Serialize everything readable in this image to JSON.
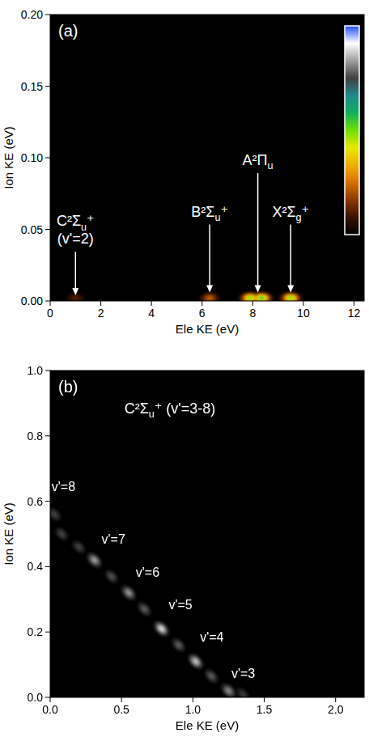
{
  "chart_data": [
    {
      "type": "heatmap",
      "title": "(a)",
      "xlabel": "Ele KE (eV)",
      "ylabel": "Ion KE (eV)",
      "xlim": [
        0,
        12.4
      ],
      "xticks": [
        0,
        2,
        4,
        6,
        8,
        10,
        12
      ],
      "ylim": [
        0,
        0.2
      ],
      "yticks": [
        {
          "value": 0,
          "label": "0.00"
        },
        {
          "value": 0.05,
          "label": "0.05"
        },
        {
          "value": 0.1,
          "label": "0.10"
        },
        {
          "value": 0.15,
          "label": "0.15"
        },
        {
          "value": 0.2,
          "label": "0.20"
        }
      ],
      "spots": [
        {
          "x": 1.0,
          "y": 0.002,
          "value": 0.12
        },
        {
          "x": 6.3,
          "y": 0.002,
          "value": 0.25
        },
        {
          "x": 7.9,
          "y": 0.002,
          "value": 0.55
        },
        {
          "x": 8.35,
          "y": 0.002,
          "value": 0.6
        },
        {
          "x": 9.5,
          "y": 0.002,
          "value": 0.55
        }
      ],
      "annotations": [
        {
          "text": [
            "C²Σu⁺",
            "(v'=2)"
          ],
          "x": 1.0,
          "y": 0.004,
          "text_y": 0.04,
          "arrow": true
        },
        {
          "text": [
            "B²Σu⁺"
          ],
          "x": 6.3,
          "y": 0.006,
          "text_y": 0.059,
          "arrow": true
        },
        {
          "text": [
            "A²Πu"
          ],
          "x": 8.2,
          "y": 0.006,
          "text_y": 0.095,
          "arrow": true
        },
        {
          "text": [
            "X²Σg⁺"
          ],
          "x": 9.5,
          "y": 0.006,
          "text_y": 0.059,
          "arrow": true
        }
      ],
      "colorbar": {
        "colors": [
          "#000000",
          "#3a1200",
          "#8a3a00",
          "#d87000",
          "#f0b000",
          "#e8e800",
          "#70e000",
          "#10b060",
          "#208890",
          "#404040",
          "#a0a0a0",
          "#ffffff",
          "#2050ff"
        ]
      }
    },
    {
      "type": "heatmap",
      "title": "(b)",
      "xlabel": "Ele KE (eV)",
      "ylabel": "Ion KE (eV)",
      "xlim": [
        0,
        2.2
      ],
      "xticks": [
        {
          "value": 0,
          "label": "0.0"
        },
        {
          "value": 0.5,
          "label": "0.5"
        },
        {
          "value": 1,
          "label": "1.0"
        },
        {
          "value": 1.5,
          "label": "1.5"
        },
        {
          "value": 2,
          "label": "2.0"
        }
      ],
      "ylim": [
        0,
        1.0
      ],
      "yticks": [
        {
          "value": 0,
          "label": "0.0"
        },
        {
          "value": 0.2,
          "label": "0.2"
        },
        {
          "value": 0.4,
          "label": "0.4"
        },
        {
          "value": 0.6,
          "label": "0.6"
        },
        {
          "value": 0.8,
          "label": "0.8"
        },
        {
          "value": 1,
          "label": "1.0"
        }
      ],
      "spots": [
        {
          "x": 0.03,
          "y": 0.56,
          "value": 0.3
        },
        {
          "x": 0.08,
          "y": 0.5,
          "value": 0.3
        },
        {
          "x": 0.2,
          "y": 0.46,
          "value": 0.3
        },
        {
          "x": 0.31,
          "y": 0.42,
          "value": 0.7
        },
        {
          "x": 0.43,
          "y": 0.37,
          "value": 0.35
        },
        {
          "x": 0.55,
          "y": 0.32,
          "value": 0.65
        },
        {
          "x": 0.66,
          "y": 0.27,
          "value": 0.4
        },
        {
          "x": 0.78,
          "y": 0.21,
          "value": 0.95
        },
        {
          "x": 0.9,
          "y": 0.16,
          "value": 0.4
        },
        {
          "x": 1.02,
          "y": 0.11,
          "value": 0.85
        },
        {
          "x": 1.13,
          "y": 0.065,
          "value": 0.4
        },
        {
          "x": 1.25,
          "y": 0.02,
          "value": 0.6
        },
        {
          "x": 1.35,
          "y": 0.01,
          "value": 0.25
        }
      ],
      "annotations": [
        {
          "text": [
            "C²Σu⁺ (v'=3-8)"
          ],
          "x": 0.52,
          "text_y": 0.87,
          "arrow": false
        },
        {
          "text": [
            "v'=8"
          ],
          "x": 0.01,
          "text_y": 0.63,
          "arrow": false
        },
        {
          "text": [
            "v'=7"
          ],
          "x": 0.36,
          "text_y": 0.47,
          "arrow": false
        },
        {
          "text": [
            "v'=6"
          ],
          "x": 0.6,
          "text_y": 0.37,
          "arrow": false
        },
        {
          "text": [
            "v'=5"
          ],
          "x": 0.83,
          "text_y": 0.27,
          "arrow": false
        },
        {
          "text": [
            "v'=4"
          ],
          "x": 1.05,
          "text_y": 0.17,
          "arrow": false
        },
        {
          "text": [
            "v'=3"
          ],
          "x": 1.27,
          "text_y": 0.06,
          "arrow": false
        }
      ]
    }
  ]
}
